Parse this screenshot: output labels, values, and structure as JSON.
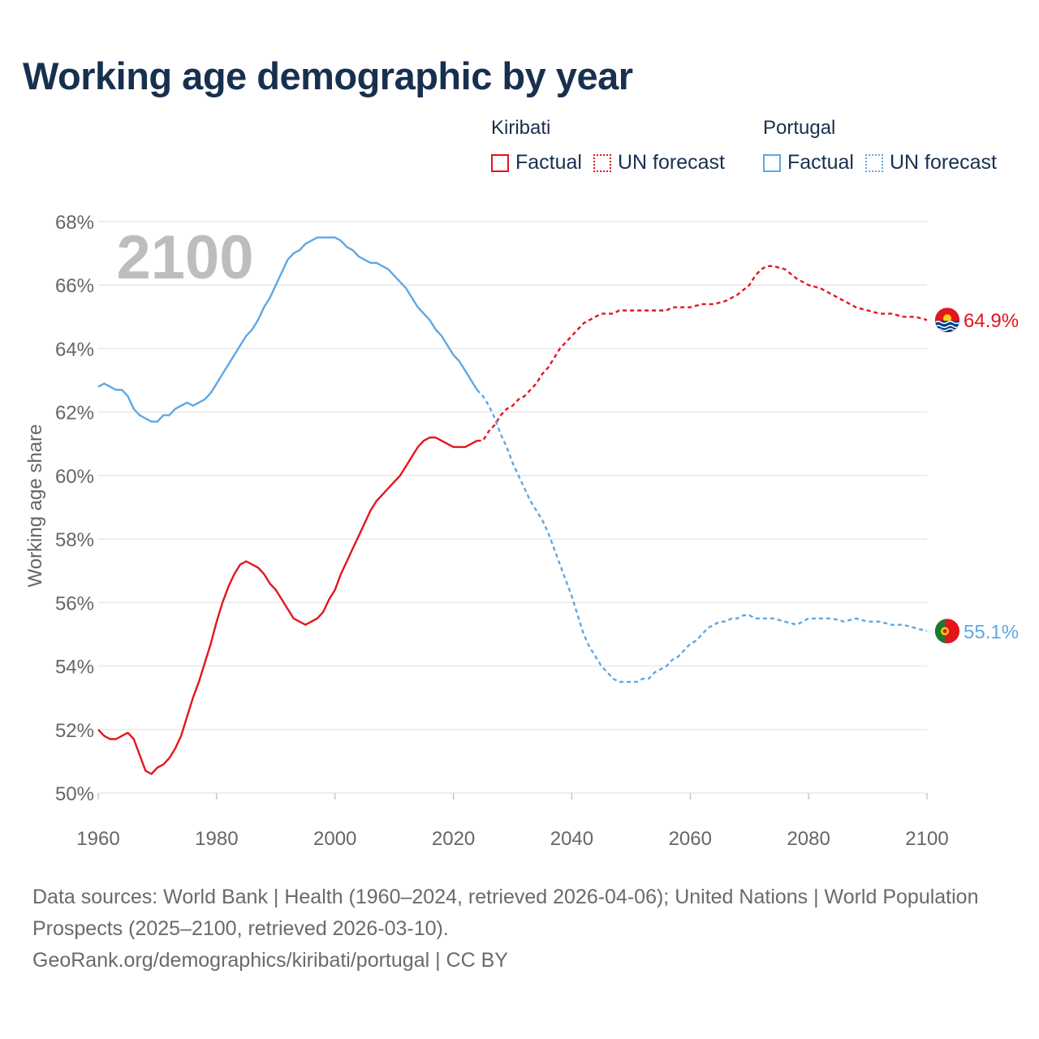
{
  "title": "Working age demographic by year",
  "year_label": "2100",
  "legend": {
    "groups": [
      {
        "country": "Kiribati",
        "color": "#e4151d",
        "factual": "Factual",
        "forecast": "UN forecast"
      },
      {
        "country": "Portugal",
        "color": "#5fa7e4",
        "factual": "Factual",
        "forecast": "UN forecast"
      }
    ]
  },
  "footer": {
    "sources": "Data sources: World Bank | Health (1960–2024, retrieved 2026-04-06); United Nations | World Population Prospects (2025–2100, retrieved 2026-03-10).",
    "link": "GeoRank.org/demographics/kiribati/portugal | CC BY"
  },
  "chart_data": {
    "type": "line",
    "title": "Working age demographic by year",
    "xlabel": "",
    "ylabel": "Working age share",
    "xlim": [
      1960,
      2100
    ],
    "ylim": [
      50,
      68
    ],
    "x_ticks": [
      1960,
      1980,
      2000,
      2020,
      2040,
      2060,
      2080,
      2100
    ],
    "y_ticks": [
      50,
      52,
      54,
      56,
      58,
      60,
      62,
      64,
      66,
      68
    ],
    "y_tick_suffix": "%",
    "grid": true,
    "series": [
      {
        "name": "Kiribati",
        "color": "#e4151d",
        "end_label": "64.9%",
        "flag": "kiribati-flag",
        "factual": [
          [
            1960,
            52.0
          ],
          [
            1961,
            51.8
          ],
          [
            1962,
            51.7
          ],
          [
            1963,
            51.7
          ],
          [
            1964,
            51.8
          ],
          [
            1965,
            51.9
          ],
          [
            1966,
            51.7
          ],
          [
            1967,
            51.2
          ],
          [
            1968,
            50.7
          ],
          [
            1969,
            50.6
          ],
          [
            1970,
            50.8
          ],
          [
            1971,
            50.9
          ],
          [
            1972,
            51.1
          ],
          [
            1973,
            51.4
          ],
          [
            1974,
            51.8
          ],
          [
            1975,
            52.4
          ],
          [
            1976,
            53.0
          ],
          [
            1977,
            53.5
          ],
          [
            1978,
            54.1
          ],
          [
            1979,
            54.7
          ],
          [
            1980,
            55.4
          ],
          [
            1981,
            56.0
          ],
          [
            1982,
            56.5
          ],
          [
            1983,
            56.9
          ],
          [
            1984,
            57.2
          ],
          [
            1985,
            57.3
          ],
          [
            1986,
            57.2
          ],
          [
            1987,
            57.1
          ],
          [
            1988,
            56.9
          ],
          [
            1989,
            56.6
          ],
          [
            1990,
            56.4
          ],
          [
            1991,
            56.1
          ],
          [
            1992,
            55.8
          ],
          [
            1993,
            55.5
          ],
          [
            1994,
            55.4
          ],
          [
            1995,
            55.3
          ],
          [
            1996,
            55.4
          ],
          [
            1997,
            55.5
          ],
          [
            1998,
            55.7
          ],
          [
            1999,
            56.1
          ],
          [
            2000,
            56.4
          ],
          [
            2001,
            56.9
          ],
          [
            2002,
            57.3
          ],
          [
            2003,
            57.7
          ],
          [
            2004,
            58.1
          ],
          [
            2005,
            58.5
          ],
          [
            2006,
            58.9
          ],
          [
            2007,
            59.2
          ],
          [
            2008,
            59.4
          ],
          [
            2009,
            59.6
          ],
          [
            2010,
            59.8
          ],
          [
            2011,
            60.0
          ],
          [
            2012,
            60.3
          ],
          [
            2013,
            60.6
          ],
          [
            2014,
            60.9
          ],
          [
            2015,
            61.1
          ],
          [
            2016,
            61.2
          ],
          [
            2017,
            61.2
          ],
          [
            2018,
            61.1
          ],
          [
            2019,
            61.0
          ],
          [
            2020,
            60.9
          ],
          [
            2021,
            60.9
          ],
          [
            2022,
            60.9
          ],
          [
            2023,
            61.0
          ],
          [
            2024,
            61.1
          ]
        ],
        "forecast": [
          [
            2024,
            61.1
          ],
          [
            2025,
            61.1
          ],
          [
            2026,
            61.4
          ],
          [
            2027,
            61.6
          ],
          [
            2028,
            61.9
          ],
          [
            2029,
            62.1
          ],
          [
            2030,
            62.2
          ],
          [
            2031,
            62.4
          ],
          [
            2032,
            62.5
          ],
          [
            2033,
            62.7
          ],
          [
            2034,
            62.9
          ],
          [
            2035,
            63.2
          ],
          [
            2036,
            63.4
          ],
          [
            2037,
            63.7
          ],
          [
            2038,
            64.0
          ],
          [
            2039,
            64.2
          ],
          [
            2040,
            64.4
          ],
          [
            2041,
            64.6
          ],
          [
            2042,
            64.8
          ],
          [
            2043,
            64.9
          ],
          [
            2044,
            65.0
          ],
          [
            2045,
            65.1
          ],
          [
            2046,
            65.1
          ],
          [
            2047,
            65.1
          ],
          [
            2048,
            65.2
          ],
          [
            2049,
            65.2
          ],
          [
            2050,
            65.2
          ],
          [
            2052,
            65.2
          ],
          [
            2054,
            65.2
          ],
          [
            2056,
            65.2
          ],
          [
            2057,
            65.3
          ],
          [
            2058,
            65.3
          ],
          [
            2060,
            65.3
          ],
          [
            2062,
            65.4
          ],
          [
            2064,
            65.4
          ],
          [
            2066,
            65.5
          ],
          [
            2068,
            65.7
          ],
          [
            2070,
            66.0
          ],
          [
            2071,
            66.3
          ],
          [
            2072,
            66.5
          ],
          [
            2073,
            66.6
          ],
          [
            2074,
            66.6
          ],
          [
            2076,
            66.5
          ],
          [
            2078,
            66.2
          ],
          [
            2080,
            66.0
          ],
          [
            2082,
            65.9
          ],
          [
            2084,
            65.7
          ],
          [
            2086,
            65.5
          ],
          [
            2088,
            65.3
          ],
          [
            2090,
            65.2
          ],
          [
            2092,
            65.1
          ],
          [
            2094,
            65.1
          ],
          [
            2096,
            65.0
          ],
          [
            2098,
            65.0
          ],
          [
            2100,
            64.9
          ]
        ]
      },
      {
        "name": "Portugal",
        "color": "#5fa7e4",
        "end_label": "55.1%",
        "flag": "portugal-flag",
        "factual": [
          [
            1960,
            62.8
          ],
          [
            1961,
            62.9
          ],
          [
            1962,
            62.8
          ],
          [
            1963,
            62.7
          ],
          [
            1964,
            62.7
          ],
          [
            1965,
            62.5
          ],
          [
            1966,
            62.1
          ],
          [
            1967,
            61.9
          ],
          [
            1968,
            61.8
          ],
          [
            1969,
            61.7
          ],
          [
            1970,
            61.7
          ],
          [
            1971,
            61.9
          ],
          [
            1972,
            61.9
          ],
          [
            1973,
            62.1
          ],
          [
            1974,
            62.2
          ],
          [
            1975,
            62.3
          ],
          [
            1976,
            62.2
          ],
          [
            1977,
            62.3
          ],
          [
            1978,
            62.4
          ],
          [
            1979,
            62.6
          ],
          [
            1980,
            62.9
          ],
          [
            1981,
            63.2
          ],
          [
            1982,
            63.5
          ],
          [
            1983,
            63.8
          ],
          [
            1984,
            64.1
          ],
          [
            1985,
            64.4
          ],
          [
            1986,
            64.6
          ],
          [
            1987,
            64.9
          ],
          [
            1988,
            65.3
          ],
          [
            1989,
            65.6
          ],
          [
            1990,
            66.0
          ],
          [
            1991,
            66.4
          ],
          [
            1992,
            66.8
          ],
          [
            1993,
            67.0
          ],
          [
            1994,
            67.1
          ],
          [
            1995,
            67.3
          ],
          [
            1996,
            67.4
          ],
          [
            1997,
            67.5
          ],
          [
            1998,
            67.5
          ],
          [
            1999,
            67.5
          ],
          [
            2000,
            67.5
          ],
          [
            2001,
            67.4
          ],
          [
            2002,
            67.2
          ],
          [
            2003,
            67.1
          ],
          [
            2004,
            66.9
          ],
          [
            2005,
            66.8
          ],
          [
            2006,
            66.7
          ],
          [
            2007,
            66.7
          ],
          [
            2008,
            66.6
          ],
          [
            2009,
            66.5
          ],
          [
            2010,
            66.3
          ],
          [
            2011,
            66.1
          ],
          [
            2012,
            65.9
          ],
          [
            2013,
            65.6
          ],
          [
            2014,
            65.3
          ],
          [
            2015,
            65.1
          ],
          [
            2016,
            64.9
          ],
          [
            2017,
            64.6
          ],
          [
            2018,
            64.4
          ],
          [
            2019,
            64.1
          ],
          [
            2020,
            63.8
          ],
          [
            2021,
            63.6
          ],
          [
            2022,
            63.3
          ],
          [
            2023,
            63.0
          ],
          [
            2024,
            62.7
          ]
        ],
        "forecast": [
          [
            2024,
            62.7
          ],
          [
            2025,
            62.5
          ],
          [
            2026,
            62.2
          ],
          [
            2027,
            61.8
          ],
          [
            2028,
            61.3
          ],
          [
            2029,
            60.9
          ],
          [
            2030,
            60.4
          ],
          [
            2031,
            60.0
          ],
          [
            2032,
            59.6
          ],
          [
            2033,
            59.2
          ],
          [
            2034,
            58.9
          ],
          [
            2035,
            58.6
          ],
          [
            2036,
            58.2
          ],
          [
            2037,
            57.7
          ],
          [
            2038,
            57.2
          ],
          [
            2039,
            56.7
          ],
          [
            2040,
            56.2
          ],
          [
            2041,
            55.6
          ],
          [
            2042,
            55.0
          ],
          [
            2043,
            54.6
          ],
          [
            2044,
            54.3
          ],
          [
            2045,
            54.0
          ],
          [
            2046,
            53.8
          ],
          [
            2047,
            53.6
          ],
          [
            2048,
            53.5
          ],
          [
            2049,
            53.5
          ],
          [
            2050,
            53.5
          ],
          [
            2051,
            53.5
          ],
          [
            2052,
            53.6
          ],
          [
            2053,
            53.6
          ],
          [
            2054,
            53.8
          ],
          [
            2055,
            53.9
          ],
          [
            2056,
            54.0
          ],
          [
            2057,
            54.2
          ],
          [
            2058,
            54.3
          ],
          [
            2059,
            54.5
          ],
          [
            2060,
            54.7
          ],
          [
            2061,
            54.8
          ],
          [
            2062,
            55.0
          ],
          [
            2063,
            55.2
          ],
          [
            2064,
            55.3
          ],
          [
            2065,
            55.4
          ],
          [
            2066,
            55.4
          ],
          [
            2067,
            55.5
          ],
          [
            2068,
            55.5
          ],
          [
            2069,
            55.6
          ],
          [
            2070,
            55.6
          ],
          [
            2071,
            55.5
          ],
          [
            2072,
            55.5
          ],
          [
            2074,
            55.5
          ],
          [
            2076,
            55.4
          ],
          [
            2078,
            55.3
          ],
          [
            2080,
            55.5
          ],
          [
            2082,
            55.5
          ],
          [
            2084,
            55.5
          ],
          [
            2086,
            55.4
          ],
          [
            2088,
            55.5
          ],
          [
            2090,
            55.4
          ],
          [
            2092,
            55.4
          ],
          [
            2094,
            55.3
          ],
          [
            2096,
            55.3
          ],
          [
            2098,
            55.2
          ],
          [
            2100,
            55.1
          ]
        ]
      }
    ]
  }
}
